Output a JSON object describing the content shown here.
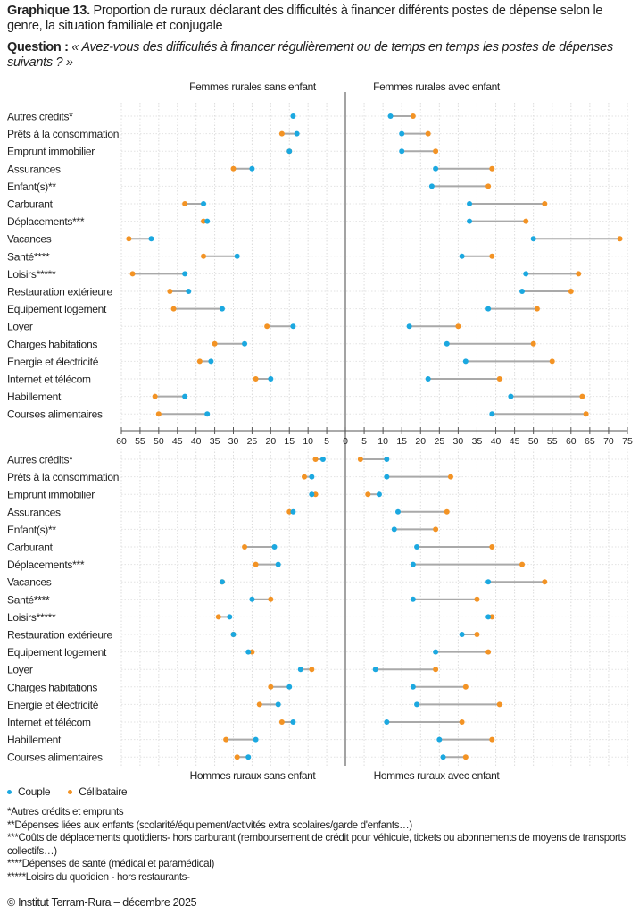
{
  "header": {
    "title_bold": "Graphique 13.",
    "title_text": " Proportion de ruraux déclarant des difficultés à financer différents postes de dépense selon le genre, la situation familiale et conjugale",
    "question_bold": "Question : ",
    "question_text": "« Avez-vous des difficultés à financer régulièrement ou de temps en temps les postes de dépenses suivants ?  »"
  },
  "legend": {
    "items": [
      {
        "label": "Couple",
        "color": "#1ba8e0"
      },
      {
        "label": "Célibataire",
        "color": "#f39324"
      }
    ]
  },
  "footnotes": [
    "*Autres crédits et emprunts",
    "**Dépenses liées aux enfants (scolarité/équipement/activités extra scolaires/garde d'enfants…)",
    "***Coûts de déplacements quotidiens- hors carburant (remboursement de crédit pour véhicule, tickets ou abonnements de moyens de transports collectifs…)",
    "****Dépenses de santé (médical et paramédical)",
    "*****Loisirs du quotidien - hors restaurants-"
  ],
  "copyright": "© Institut Terram-Rura – décembre 2025",
  "chart_data": {
    "type": "dumbbell",
    "title": "Proportion de ruraux déclarant des difficultés à financer différents postes de dépense selon le genre, la situation familiale et conjugale",
    "series_names": [
      "Couple",
      "Célibataire"
    ],
    "colors": {
      "Couple": "#1ba8e0",
      "Célibataire": "#f39324"
    },
    "categories": [
      "Autres crédits*",
      "Prêts à la consommation",
      "Emprunt immobilier",
      "Assurances",
      "Enfant(s)**",
      "Carburant",
      "Déplacements***",
      "Vacances",
      "Santé****",
      "Loisirs*****",
      "Restauration extérieure",
      "Equipement  logement",
      "Loyer",
      "Charges habitations",
      "Energie et électricité",
      "Internet et télécom",
      "Habillement",
      "Courses alimentaires"
    ],
    "axis": {
      "left_ticks": [
        60,
        55,
        50,
        45,
        40,
        35,
        30,
        25,
        20,
        15,
        10,
        5,
        0
      ],
      "right_ticks": [
        0,
        5,
        10,
        15,
        20,
        25,
        30,
        35,
        40,
        45,
        50,
        55,
        60,
        65,
        70,
        75
      ],
      "left_range": [
        0,
        60
      ],
      "right_range": [
        0,
        75
      ],
      "unit": "%"
    },
    "panels": [
      {
        "id": "femmes-sans-enfant",
        "label": "Femmes rurales sans enfant",
        "side": "left",
        "row": "top",
        "couple": [
          14,
          13,
          15,
          25,
          null,
          38,
          37,
          52,
          29,
          43,
          42,
          33,
          14,
          27,
          36,
          20,
          43,
          37
        ],
        "celibataire": [
          null,
          17,
          15,
          30,
          null,
          43,
          38,
          58,
          38,
          57,
          47,
          46,
          21,
          35,
          39,
          24,
          51,
          50
        ]
      },
      {
        "id": "femmes-avec-enfant",
        "label": "Femmes rurales avec enfant",
        "side": "right",
        "row": "top",
        "couple": [
          12,
          15,
          15,
          24,
          23,
          33,
          33,
          50,
          31,
          48,
          47,
          38,
          17,
          27,
          32,
          22,
          44,
          39
        ],
        "celibataire": [
          18,
          22,
          24,
          39,
          38,
          53,
          48,
          73,
          39,
          62,
          60,
          51,
          30,
          50,
          55,
          41,
          63,
          64
        ]
      },
      {
        "id": "hommes-sans-enfant",
        "label": "Hommes ruraux sans enfant",
        "side": "left",
        "row": "bottom",
        "couple": [
          6,
          9,
          9,
          14,
          null,
          19,
          18,
          33,
          25,
          31,
          30,
          26,
          12,
          15,
          18,
          14,
          24,
          26
        ],
        "celibataire": [
          8,
          11,
          8,
          15,
          null,
          27,
          24,
          33,
          20,
          34,
          30,
          25,
          9,
          20,
          23,
          17,
          32,
          29
        ]
      },
      {
        "id": "hommes-avec-enfant",
        "label": "Hommes ruraux avec enfant",
        "side": "right",
        "row": "bottom",
        "couple": [
          11,
          11,
          9,
          14,
          13,
          19,
          18,
          38,
          18,
          38,
          31,
          24,
          8,
          18,
          19,
          11,
          25,
          26
        ],
        "celibataire": [
          4,
          28,
          6,
          27,
          24,
          39,
          47,
          53,
          35,
          39,
          35,
          38,
          24,
          32,
          41,
          31,
          39,
          32
        ]
      }
    ]
  }
}
